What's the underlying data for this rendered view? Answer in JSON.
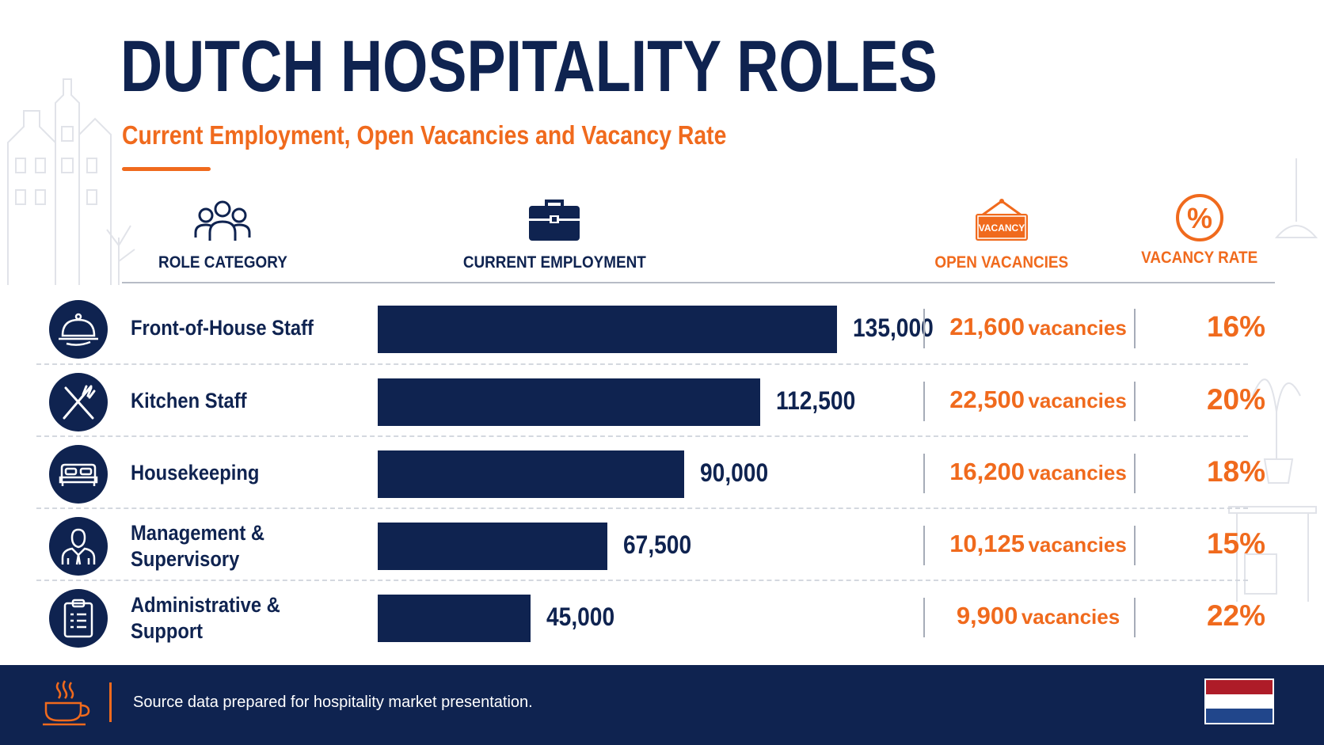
{
  "title": "DUTCH HOSPITALITY ROLES",
  "subtitle": "Current Employment, Open Vacancies and Vacancy Rate",
  "columns": {
    "role": "ROLE CATEGORY",
    "employment": "CURRENT EMPLOYMENT",
    "vacancies": "OPEN VACANCIES",
    "rate": "VACANCY RATE"
  },
  "icons": {
    "role": "people-group-icon",
    "employment": "briefcase-icon",
    "vacancies": "vacancy-sign-icon",
    "rate": "percent-icon",
    "sign_text": "VACANCY",
    "percent_glyph": "%"
  },
  "vacancy_unit": "vacancies",
  "rows": [
    {
      "role": "Front-of-House Staff",
      "icon": "cloche-icon",
      "employment_label": "135,000",
      "vacancies_label": "21,600",
      "rate_label": "16%"
    },
    {
      "role": "Kitchen Staff",
      "icon": "fork-knife-icon",
      "employment_label": "112,500",
      "vacancies_label": "22,500",
      "rate_label": "20%"
    },
    {
      "role": "Housekeeping",
      "icon": "bed-icon",
      "employment_label": "90,000",
      "vacancies_label": "16,200",
      "rate_label": "18%"
    },
    {
      "role": "Management & Supervisory",
      "icon": "manager-icon",
      "employment_label": "67,500",
      "vacancies_label": "10,125",
      "rate_label": "15%"
    },
    {
      "role": "Administrative & Support",
      "icon": "clipboard-icon",
      "employment_label": "45,000",
      "vacancies_label": "9,900",
      "rate_label": "22%"
    }
  ],
  "footer": {
    "source": "Source data prepared for hospitality market presentation.",
    "icon": "coffee-cup-icon",
    "flag": "netherlands-flag-icon"
  },
  "colors": {
    "navy": "#0f2350",
    "orange": "#f06a1d",
    "flag_red": "#ae1c28",
    "flag_white": "#ffffff",
    "flag_blue": "#21468b"
  },
  "chart_data": {
    "type": "bar",
    "orientation": "horizontal",
    "categories": [
      "Front-of-House Staff",
      "Kitchen Staff",
      "Housekeeping",
      "Management & Supervisory",
      "Administrative & Support"
    ],
    "series": [
      {
        "name": "CURRENT EMPLOYMENT",
        "values": [
          135000,
          112500,
          90000,
          67500,
          45000
        ]
      }
    ],
    "vacancies": [
      21600,
      22500,
      16200,
      10125,
      9900
    ],
    "vacancy_rate_percent": [
      16,
      20,
      18,
      15,
      22
    ],
    "xlim": [
      0,
      135000
    ],
    "grid": false,
    "legend": "none",
    "title": "DUTCH HOSPITALITY ROLES",
    "subtitle": "Current Employment, Open Vacancies and Vacancy Rate"
  }
}
